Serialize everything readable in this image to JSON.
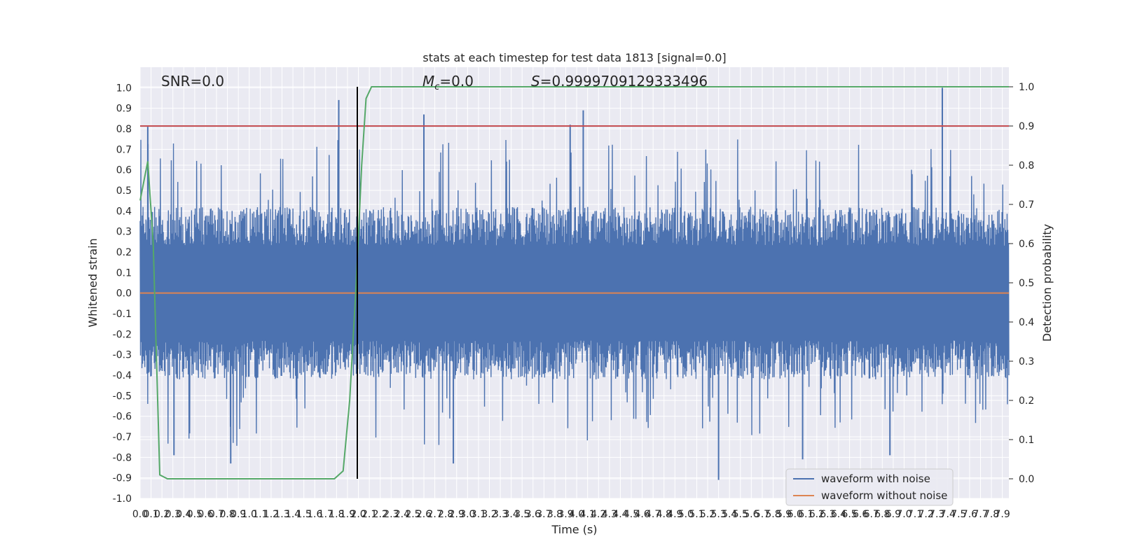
{
  "title": "stats at each timestep for test data 1813 [signal=0.0]",
  "annotations": {
    "snr": "SNR=0.0",
    "mc_symbol": "M",
    "mc_sub": "c",
    "mc_value": "=0.0",
    "s_symbol": "S",
    "s_value": "=0.9999709129333496"
  },
  "colors": {
    "noise": "#4c72b0",
    "clean": "#dd8452",
    "probability": "#55a868",
    "threshold": "#c44e52",
    "marker": "#000000",
    "axes_bg": "#eaeaf2",
    "grid": "#ffffff"
  },
  "chart_data": {
    "type": "line",
    "xlabel": "Time (s)",
    "ylabel_left": "Whitened strain",
    "ylabel_right": "Detection probability",
    "xlim": [
      0.0,
      7.96
    ],
    "ylim_left": [
      -1.0,
      1.1
    ],
    "ylim_right": [
      -0.05,
      1.05
    ],
    "grid": true,
    "x_ticks": [
      "0.0",
      "0.1",
      "0.2",
      "0.3",
      "0.4",
      "0.5",
      "0.6",
      "0.7",
      "0.8",
      "0.9",
      "1.0",
      "1.1",
      "1.2",
      "1.3",
      "1.4",
      "1.5",
      "1.6",
      "1.7",
      "1.8",
      "1.9",
      "2.0",
      "2.1",
      "2.2",
      "2.3",
      "2.4",
      "2.5",
      "2.6",
      "2.7",
      "2.8",
      "2.9",
      "3.0",
      "3.1",
      "3.2",
      "3.3",
      "3.4",
      "3.5",
      "3.6",
      "3.7",
      "3.8",
      "3.9",
      "4.0",
      "4.1",
      "4.2",
      "4.3",
      "4.4",
      "4.5",
      "4.6",
      "4.7",
      "4.8",
      "4.9",
      "5.0",
      "5.1",
      "5.2",
      "5.3",
      "5.4",
      "5.5",
      "5.6",
      "5.7",
      "5.8",
      "5.9",
      "6.0",
      "6.1",
      "6.2",
      "6.3",
      "6.4",
      "6.5",
      "6.6",
      "6.7",
      "6.8",
      "6.9",
      "7.0",
      "7.1",
      "7.2",
      "7.3",
      "7.4",
      "7.5",
      "7.6",
      "7.7",
      "7.8",
      "7.9"
    ],
    "y_ticks_left": [
      "-1.0",
      "-0.9",
      "-0.8",
      "-0.7",
      "-0.6",
      "-0.5",
      "-0.4",
      "-0.3",
      "-0.2",
      "-0.1",
      "0.0",
      "0.1",
      "0.2",
      "0.3",
      "0.4",
      "0.5",
      "0.6",
      "0.7",
      "0.8",
      "0.9",
      "1.0"
    ],
    "y_ticks_right": [
      "0.0",
      "0.1",
      "0.2",
      "0.3",
      "0.4",
      "0.5",
      "0.6",
      "0.7",
      "0.8",
      "0.9",
      "1.0"
    ],
    "series": [
      {
        "name": "waveform with noise",
        "axis": "left",
        "amplitude_envelope": 0.42,
        "peak_events": [
          {
            "x": 0.07,
            "y": 0.81
          },
          {
            "x": 1.82,
            "y": 0.94
          },
          {
            "x": 2.6,
            "y": 0.87
          },
          {
            "x": 3.94,
            "y": 0.82
          },
          {
            "x": 4.06,
            "y": 0.89
          },
          {
            "x": 7.35,
            "y": 1.0
          },
          {
            "x": 0.31,
            "y": -0.79
          },
          {
            "x": 0.83,
            "y": -0.83
          },
          {
            "x": 2.87,
            "y": -0.83
          },
          {
            "x": 5.3,
            "y": -0.91
          },
          {
            "x": 6.07,
            "y": -0.81
          },
          {
            "x": 6.87,
            "y": -0.79
          }
        ]
      },
      {
        "name": "waveform without noise",
        "axis": "left",
        "points": [
          [
            0.0,
            0.0
          ],
          [
            7.96,
            0.0
          ]
        ]
      },
      {
        "name": "detection probability",
        "axis": "right",
        "points": [
          [
            0.0,
            0.71
          ],
          [
            0.07,
            0.81
          ],
          [
            0.12,
            0.6
          ],
          [
            0.18,
            0.01
          ],
          [
            0.25,
            0.0
          ],
          [
            1.6,
            0.0
          ],
          [
            1.78,
            0.0
          ],
          [
            1.86,
            0.02
          ],
          [
            1.92,
            0.2
          ],
          [
            1.98,
            0.5
          ],
          [
            2.03,
            0.8
          ],
          [
            2.07,
            0.97
          ],
          [
            2.12,
            1.0
          ],
          [
            7.96,
            1.0
          ]
        ]
      },
      {
        "name": "threshold",
        "axis": "right",
        "points": [
          [
            0.0,
            0.9
          ],
          [
            7.96,
            0.9
          ]
        ]
      },
      {
        "name": "marker",
        "axis": "left",
        "x": 1.99
      }
    ],
    "legend": {
      "position": "lower-right",
      "entries": [
        "waveform with noise",
        "waveform without noise"
      ]
    }
  }
}
